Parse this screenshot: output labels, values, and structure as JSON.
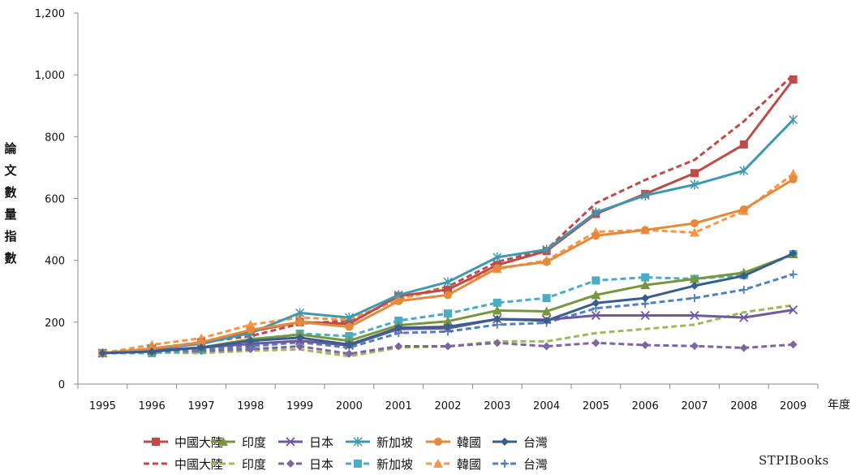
{
  "chart_data": {
    "type": "line",
    "ylabel_chars": [
      "論",
      "文",
      "數",
      "量",
      "指",
      "數"
    ],
    "xlabel": "年度",
    "x": [
      "1995",
      "1996",
      "1997",
      "1998",
      "1999",
      "2000",
      "2001",
      "2002",
      "2003",
      "2004",
      "2005",
      "2006",
      "2007",
      "2008",
      "2009"
    ],
    "ylim": [
      0,
      1200
    ],
    "yticks": [
      0,
      200,
      400,
      600,
      800,
      1000,
      1200
    ],
    "ytick_labels": [
      "0",
      "200",
      "400",
      "600",
      "800",
      "1,000",
      "1,200"
    ],
    "grid": false,
    "legend_placement": "bottom",
    "series": [
      {
        "name": "中國大陸",
        "color": "#be4b48",
        "dash": false,
        "marker": "square",
        "values": [
          100,
          112,
          135,
          170,
          200,
          195,
          285,
          305,
          385,
          430,
          550,
          615,
          682,
          775,
          985
        ]
      },
      {
        "name": "印度",
        "color": "#77963d",
        "dash": false,
        "marker": "triangle",
        "values": [
          100,
          107,
          118,
          145,
          160,
          140,
          190,
          203,
          238,
          235,
          288,
          320,
          340,
          360,
          420
        ]
      },
      {
        "name": "日本",
        "color": "#7156a0",
        "dash": false,
        "marker": "x",
        "values": [
          100,
          110,
          118,
          130,
          140,
          125,
          178,
          180,
          210,
          208,
          222,
          222,
          222,
          215,
          240
        ]
      },
      {
        "name": "新加坡",
        "color": "#3e98af",
        "dash": false,
        "marker": "star",
        "values": [
          100,
          115,
          130,
          165,
          230,
          215,
          288,
          330,
          410,
          435,
          555,
          610,
          645,
          690,
          855
        ]
      },
      {
        "name": "韓國",
        "color": "#e5893a",
        "dash": false,
        "marker": "circle",
        "values": [
          100,
          115,
          135,
          175,
          200,
          185,
          268,
          288,
          375,
          395,
          480,
          498,
          520,
          565,
          662
        ]
      },
      {
        "name": "台灣",
        "color": "#385e8c",
        "dash": false,
        "marker": "diamond",
        "values": [
          100,
          105,
          118,
          140,
          150,
          128,
          182,
          185,
          210,
          205,
          262,
          278,
          318,
          350,
          422
        ]
      },
      {
        "name": "中國大陸",
        "color": "#be4b48",
        "dash": true,
        "marker": "none",
        "values": [
          100,
          115,
          135,
          155,
          195,
          205,
          275,
          315,
          395,
          435,
          585,
          660,
          725,
          850,
          1000
        ]
      },
      {
        "name": "印度",
        "color": "#9bbb59",
        "dash": true,
        "marker": "none",
        "values": [
          100,
          102,
          100,
          108,
          112,
          90,
          118,
          122,
          138,
          138,
          165,
          178,
          192,
          232,
          255
        ]
      },
      {
        "name": "日本",
        "color": "#8064a2",
        "dash": true,
        "marker": "diamond",
        "values": [
          100,
          103,
          107,
          113,
          122,
          98,
          122,
          122,
          133,
          122,
          133,
          126,
          123,
          117,
          128
        ]
      },
      {
        "name": "新加坡",
        "color": "#4bacc6",
        "dash": true,
        "marker": "square",
        "values": [
          100,
          100,
          112,
          135,
          163,
          155,
          205,
          228,
          263,
          278,
          335,
          345,
          340,
          352,
          420
        ]
      },
      {
        "name": "韓國",
        "color": "#f79646",
        "dash": true,
        "marker": "triangle",
        "values": [
          100,
          127,
          148,
          192,
          215,
          208,
          275,
          310,
          372,
          400,
          492,
          498,
          490,
          560,
          680
        ]
      },
      {
        "name": "台灣",
        "color": "#4f81bd",
        "dash": true,
        "marker": "plus",
        "values": [
          100,
          105,
          112,
          122,
          135,
          118,
          165,
          170,
          192,
          198,
          245,
          260,
          278,
          305,
          355
        ]
      }
    ]
  },
  "watermark": "STPIBooks"
}
